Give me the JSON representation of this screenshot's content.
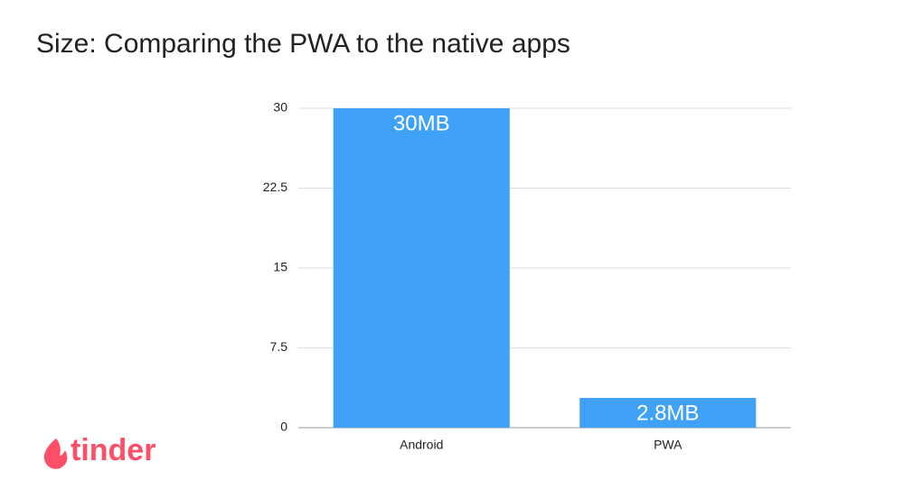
{
  "chart_data": {
    "type": "bar",
    "title": "Size: Comparing the PWA to the native apps",
    "categories": [
      "Android",
      "PWA"
    ],
    "values": [
      30,
      2.8
    ],
    "value_labels": [
      "30MB",
      "2.8MB"
    ],
    "color": "#3fa2f7",
    "ylim": [
      0,
      30
    ],
    "yticks": [
      0,
      7.5,
      15,
      22.5,
      30
    ],
    "grid": true
  },
  "brand": "tinder"
}
